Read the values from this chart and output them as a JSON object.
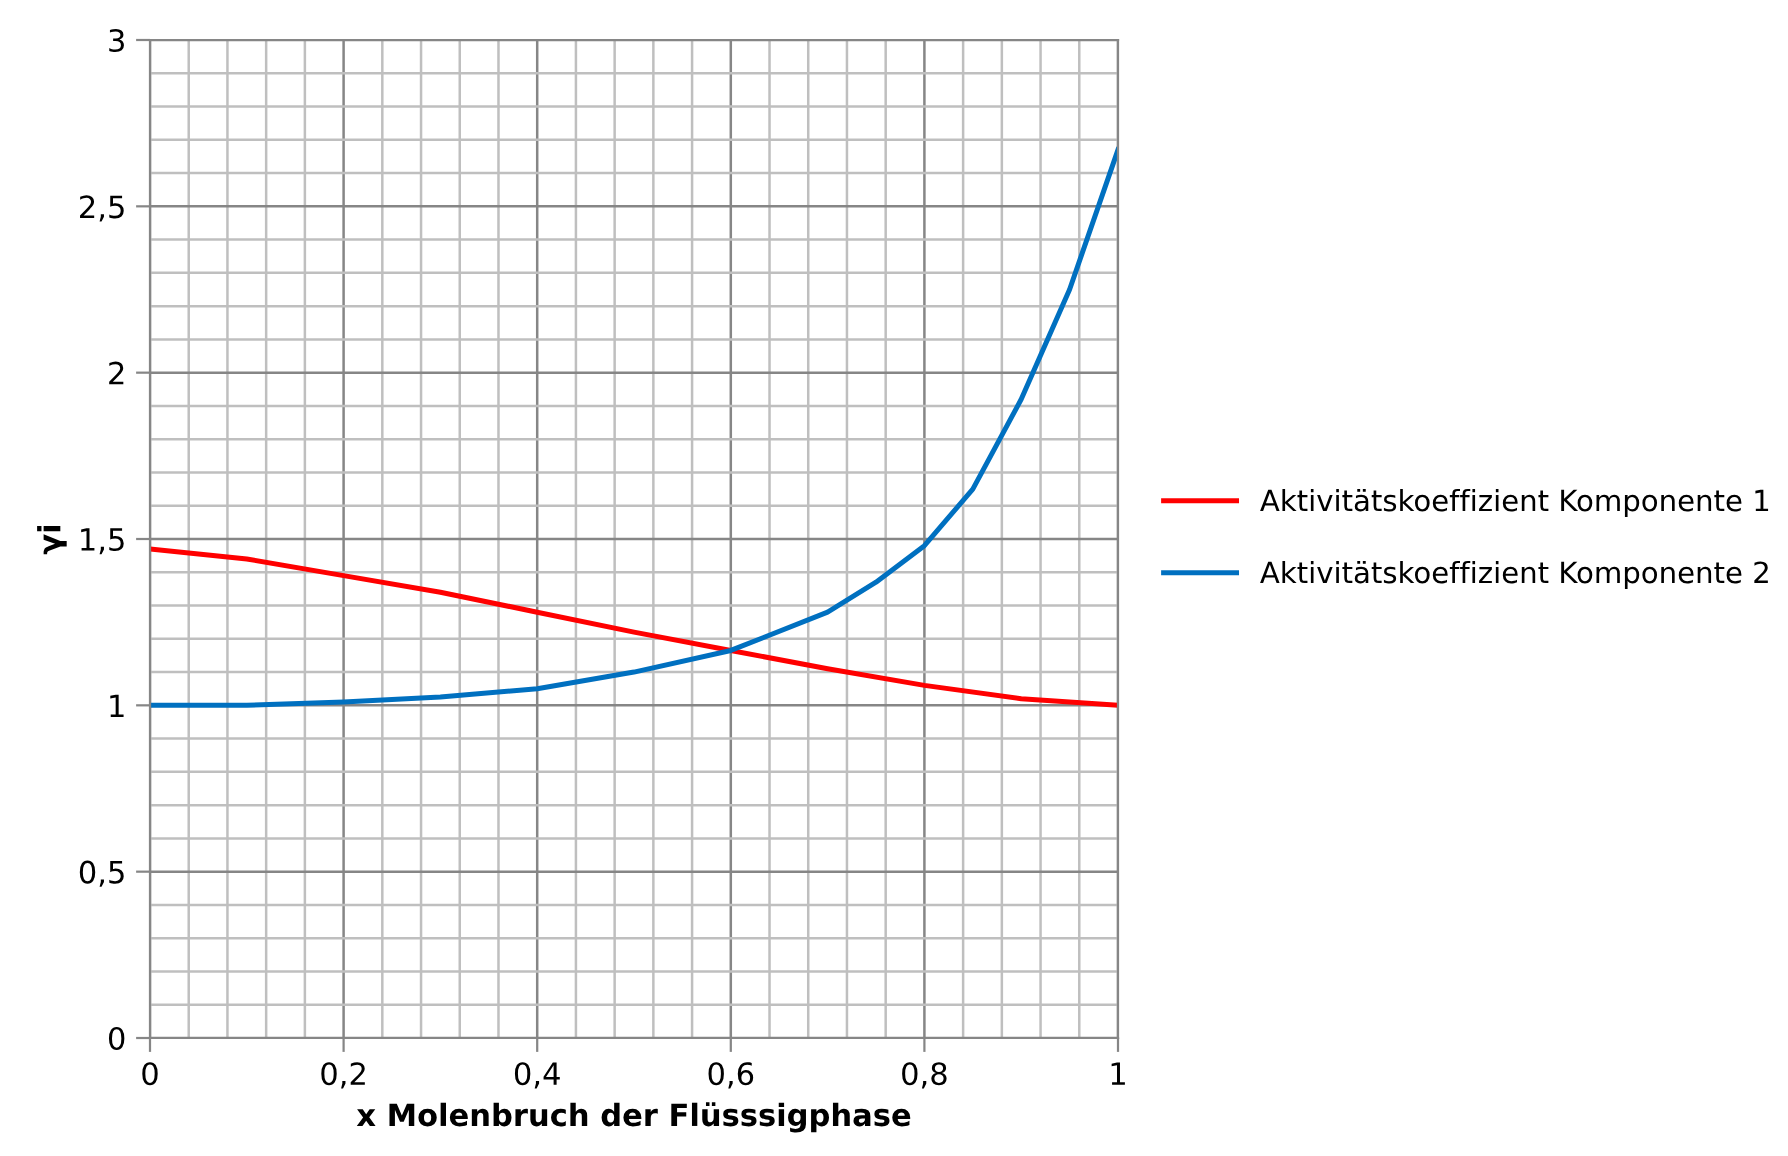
{
  "chart_data": {
    "type": "line",
    "xlabel": "x Molenbruch der Flüsssigphase",
    "ylabel": "γi",
    "xlim": [
      0,
      1
    ],
    "ylim": [
      0,
      3
    ],
    "xticks": [
      0,
      {
        "value": 0.2,
        "label": "0,2"
      },
      {
        "value": 0.4,
        "label": "0,4"
      },
      {
        "value": 0.6,
        "label": "0,6"
      },
      {
        "value": 0.8,
        "label": "0,8"
      },
      1
    ],
    "yticks": [
      0,
      {
        "value": 0.5,
        "label": "0,5"
      },
      1,
      {
        "value": 1.5,
        "label": "1,5"
      },
      2,
      {
        "value": 2.5,
        "label": "2,5"
      },
      3
    ],
    "grid": true,
    "legend": "right",
    "series": [
      {
        "name": "Aktivitätskoeffizient Komponente 1",
        "color": "#ff0000",
        "x": [
          0,
          0.1,
          0.2,
          0.3,
          0.4,
          0.5,
          0.6,
          0.7,
          0.8,
          0.9,
          1.0
        ],
        "values": [
          1.47,
          1.44,
          1.39,
          1.34,
          1.28,
          1.22,
          1.165,
          1.11,
          1.06,
          1.02,
          1.0
        ]
      },
      {
        "name": "Aktivitätskoeffizient Komponente 2",
        "color": "#0070c0",
        "x": [
          0,
          0.1,
          0.2,
          0.3,
          0.4,
          0.5,
          0.6,
          0.7,
          0.75,
          0.8,
          0.85,
          0.9,
          0.95,
          1.0
        ],
        "values": [
          1.0,
          1.0,
          1.01,
          1.025,
          1.05,
          1.1,
          1.165,
          1.28,
          1.37,
          1.48,
          1.65,
          1.92,
          2.25,
          2.67
        ]
      }
    ]
  }
}
